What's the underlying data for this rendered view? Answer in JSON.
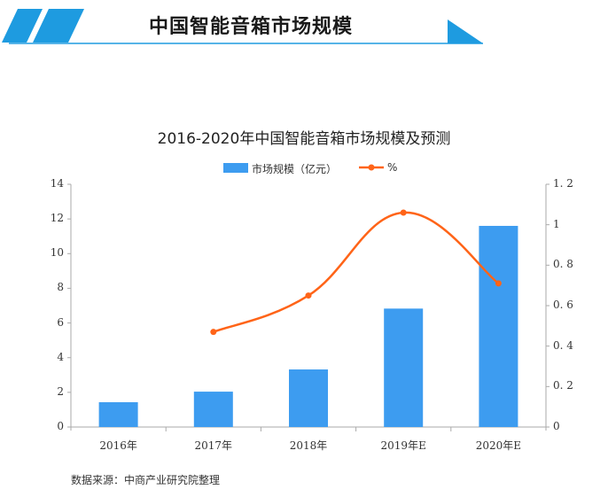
{
  "banner": {
    "title": "中国智能音箱市场规模",
    "accent_color": "#1e9be0"
  },
  "chart_data": {
    "type": "bar+line",
    "title": "2016-2020年中国智能音箱市场规模及预测",
    "categories": [
      "2016年",
      "2017年",
      "2018年",
      "2019年E",
      "2020年E"
    ],
    "series": [
      {
        "name": "市场规模（亿元）",
        "type": "bar",
        "axis": "left",
        "color": "#3d9cf0",
        "values": [
          1.43,
          2.04,
          3.32,
          6.83,
          11.6
        ]
      },
      {
        "name": "%",
        "type": "line",
        "axis": "right",
        "color": "#ff6418",
        "values": [
          null,
          0.47,
          0.65,
          1.06,
          0.71
        ]
      }
    ],
    "y_left": {
      "min": 0,
      "max": 14,
      "ticks": [
        "0",
        "2",
        "4",
        "6",
        "8",
        "10",
        "12",
        "14"
      ]
    },
    "y_right": {
      "min": 0,
      "max": 1.2,
      "ticks": [
        "0",
        "0.2",
        "0.4",
        "0.6",
        "0.8",
        "1",
        "1.2"
      ]
    },
    "legend_position": "top",
    "grid": false
  },
  "legend": {
    "bar_label": "市场规模（亿元）",
    "line_label": "%"
  },
  "source": "数据来源：中商产业研究院整理"
}
